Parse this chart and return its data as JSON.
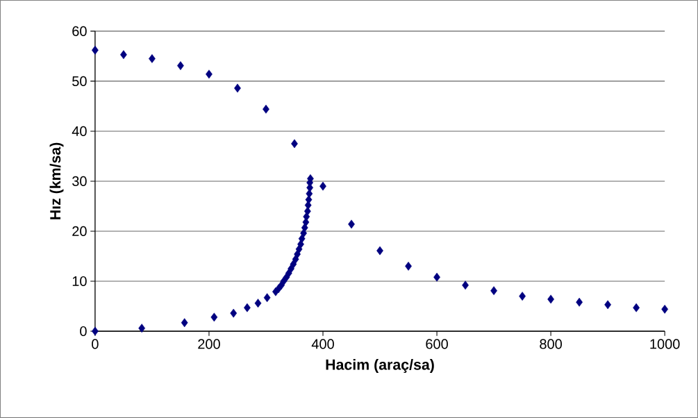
{
  "chart_data": {
    "type": "scatter",
    "xlabel": "Hacim (araç/sa)",
    "ylabel": "Hız (km/sa)",
    "xlim": [
      0,
      1000
    ],
    "ylim": [
      0,
      60
    ],
    "xticks": [
      0,
      200,
      400,
      600,
      800,
      1000
    ],
    "yticks": [
      0,
      10,
      20,
      30,
      40,
      50,
      60
    ],
    "grid": "y",
    "marker": "diamond",
    "series": [
      {
        "color": "#000080",
        "x": [
          0,
          50,
          100,
          150,
          200,
          250,
          300,
          350,
          400,
          450,
          500,
          550,
          600,
          650,
          700,
          750,
          800,
          850,
          900,
          950,
          1000,
          0,
          82,
          157,
          209,
          243,
          267,
          286,
          302,
          317,
          322,
          327,
          331,
          336,
          340,
          344,
          348,
          352,
          355,
          358,
          361,
          363,
          366,
          368,
          370,
          371,
          373,
          374,
          375,
          376,
          377,
          377,
          378
        ],
        "values": [
          56.2,
          55.3,
          54.5,
          53.1,
          51.4,
          48.6,
          44.4,
          37.5,
          29,
          21.4,
          16.1,
          13,
          10.8,
          9.2,
          8.1,
          7,
          6.4,
          5.8,
          5.3,
          4.7,
          4.4,
          0,
          0.6,
          1.7,
          2.8,
          3.6,
          4.7,
          5.6,
          6.7,
          7.9,
          8.5,
          9.2,
          10,
          10.8,
          11.6,
          12.5,
          13.4,
          14.4,
          15.4,
          16.4,
          17.4,
          18.5,
          19.6,
          20.7,
          21.8,
          22.9,
          24,
          25.2,
          26.3,
          27.5,
          28.7,
          29.7,
          30.5
        ]
      }
    ]
  }
}
